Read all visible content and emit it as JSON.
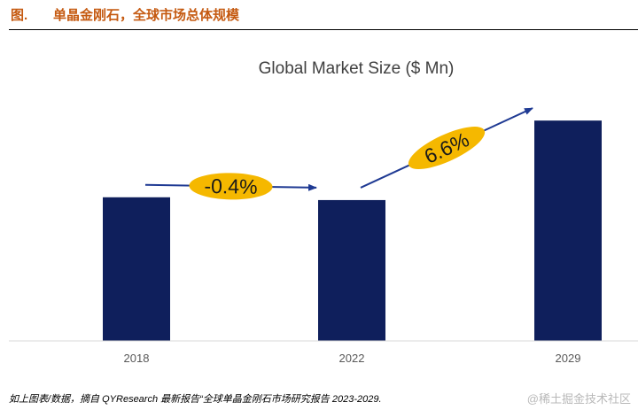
{
  "figure": {
    "label": "图.",
    "caption": "单晶金刚石，全球市场总体规模"
  },
  "chart_data": {
    "type": "bar",
    "title": "Global Market Size ($ Mn)",
    "categories": [
      "2018",
      "2022",
      "2029"
    ],
    "values": [
      103,
      101,
      158
    ],
    "ylim": [
      0,
      160
    ],
    "grid": false,
    "colors": {
      "bar": "#0f1f5c",
      "annotation_fill": "#f5b800",
      "arrow": "#1f3a93"
    },
    "annotations": [
      {
        "label": "-0.4%",
        "from": "2018",
        "to": "2022"
      },
      {
        "label": "6.6%",
        "from": "2022",
        "to": "2029"
      }
    ]
  },
  "footnote": "如上图表/数据，摘自 QYResearch 最新报告“全球单晶金刚石市场研究报告 2023-2029.",
  "watermark": "@稀土掘金技术社区"
}
